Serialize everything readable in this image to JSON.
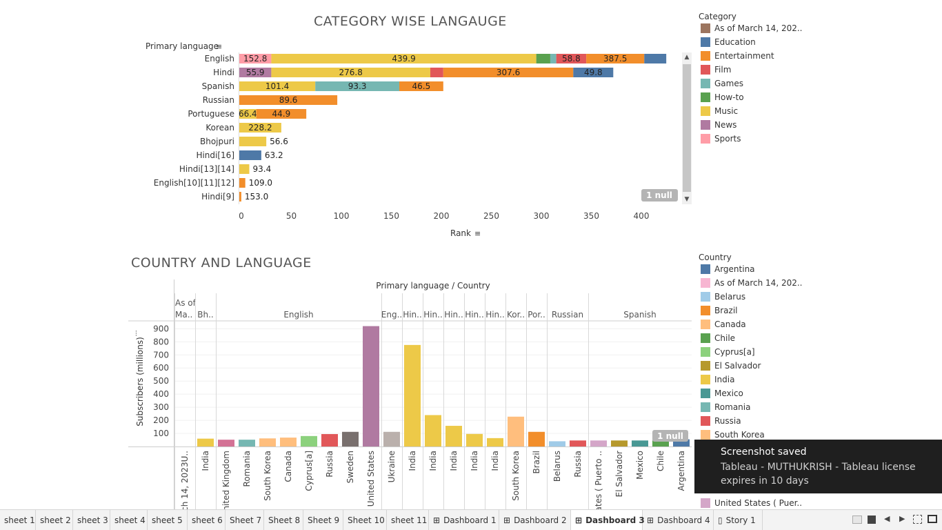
{
  "colors": {
    "As of March 14, 202..": "#9c755f",
    "Education": "#4e79a7",
    "Entertainment": "#f28e2b",
    "Film": "#e15759",
    "Games": "#76b7b2",
    "How-to": "#59a14f",
    "Music": "#edc948",
    "News": "#b07aa1",
    "Sports": "#ff9da7"
  },
  "top_chart": {
    "title": "CATEGORY WISE LANGAUGE",
    "row_header": "Primary language",
    "x_axis_label": "Rank",
    "null_badge": "1 null"
  },
  "bottom_chart": {
    "title": "COUNTRY AND LANGUAGE",
    "header_label": "Primary language / Country",
    "y_axis_label": "Subscribers (millions)",
    "null_badge": "1 null"
  },
  "chart_data": [
    {
      "type": "bar",
      "orientation": "horizontal",
      "stacked": true,
      "title": "CATEGORY WISE LANGAUGE",
      "xlabel": "Rank",
      "ylabel": "Primary language",
      "xlim": [
        0,
        450
      ],
      "xticks": [
        0,
        50,
        100,
        150,
        200,
        250,
        300,
        350,
        400
      ],
      "categories": [
        "English",
        "Hindi",
        "Spanish",
        "Russian",
        "Portuguese",
        "Korean",
        "Bhojpuri",
        "Hindi[16]",
        "Hindi[13][14]",
        "English[10][11][12]",
        "Hindi[9]"
      ],
      "rows": [
        {
          "label": "English",
          "segments": [
            {
              "cat": "Sports",
              "value": 32,
              "label": "152.8"
            },
            {
              "cat": "Music",
              "value": 265,
              "label": "439.9"
            },
            {
              "cat": "How-to",
              "value": 14,
              "label": ""
            },
            {
              "cat": "Games",
              "value": 6,
              "label": ""
            },
            {
              "cat": "Film",
              "value": 30,
              "label": "58.8"
            },
            {
              "cat": "Entertainment",
              "value": 58,
              "label": "387.5"
            },
            {
              "cat": "Education",
              "value": 22,
              "label": ""
            }
          ]
        },
        {
          "label": "Hindi",
          "segments": [
            {
              "cat": "News",
              "value": 32,
              "label": "55.9"
            },
            {
              "cat": "Music",
              "value": 159,
              "label": "276.8"
            },
            {
              "cat": "Film",
              "value": 13,
              "label": ""
            },
            {
              "cat": "Entertainment",
              "value": 130,
              "label": "307.6"
            },
            {
              "cat": "Education",
              "value": 40,
              "label": "49.8"
            }
          ]
        },
        {
          "label": "Spanish",
          "segments": [
            {
              "cat": "Music",
              "value": 76,
              "label": "101.4"
            },
            {
              "cat": "Games",
              "value": 84,
              "label": "93.3"
            },
            {
              "cat": "Entertainment",
              "value": 44,
              "label": "46.5"
            }
          ]
        },
        {
          "label": "Russian",
          "segments": [
            {
              "cat": "Entertainment",
              "value": 98,
              "label": "89.6"
            }
          ]
        },
        {
          "label": "Portuguese",
          "segments": [
            {
              "cat": "Music",
              "value": 17,
              "label": "66.4"
            },
            {
              "cat": "Entertainment",
              "value": 50,
              "label": "44.9"
            }
          ]
        },
        {
          "label": "Korean",
          "segments": [
            {
              "cat": "Music",
              "value": 42,
              "label": "228.2"
            }
          ]
        },
        {
          "label": "Bhojpuri",
          "segments": [
            {
              "cat": "Music",
              "value": 27,
              "label": "56.6"
            }
          ]
        },
        {
          "label": "Hindi[16]",
          "segments": [
            {
              "cat": "Education",
              "value": 22,
              "label": "63.2"
            }
          ]
        },
        {
          "label": "Hindi[13][14]",
          "segments": [
            {
              "cat": "Music",
              "value": 10,
              "label": "93.4"
            }
          ]
        },
        {
          "label": "English[10][11][12]",
          "segments": [
            {
              "cat": "Entertainment",
              "value": 6,
              "label": "109.0"
            }
          ]
        },
        {
          "label": "Hindi[9]",
          "segments": [
            {
              "cat": "Entertainment",
              "value": 2,
              "label": "153.0"
            }
          ]
        }
      ],
      "legend": {
        "title": "Category",
        "placement": "right",
        "items": [
          "As of March 14, 202..",
          "Education",
          "Entertainment",
          "Film",
          "Games",
          "How-to",
          "Music",
          "News",
          "Sports"
        ]
      }
    },
    {
      "type": "bar",
      "title": "COUNTRY AND LANGUAGE",
      "xlabel": "Primary language / Country",
      "ylabel": "Subscribers (millions)",
      "ylim": [
        0,
        1000
      ],
      "yticks": [
        100,
        200,
        300,
        400,
        500,
        600,
        700,
        800,
        900
      ],
      "groups": [
        {
          "label": "As of Ma..",
          "bars": [
            {
              "country": "rch 14, 2023U..",
              "value": 0,
              "color": "#f7b6d2"
            }
          ]
        },
        {
          "label": "Bh..",
          "bars": [
            {
              "country": "India",
              "value": 60,
              "color": "#edc948"
            }
          ]
        },
        {
          "label": "English",
          "bars": [
            {
              "country": "United Kingdom",
              "value": 52,
              "color": "#d37295"
            },
            {
              "country": "Romania",
              "value": 52,
              "color": "#76b7b2"
            },
            {
              "country": "South Korea",
              "value": 62,
              "color": "#ffbe7d"
            },
            {
              "country": "Canada",
              "value": 68,
              "color": "#ffbe7d"
            },
            {
              "country": "Cyprus[a]",
              "value": 80,
              "color": "#8cd17d"
            },
            {
              "country": "Russia",
              "value": 95,
              "color": "#e15759"
            },
            {
              "country": "Sweden",
              "value": 112,
              "color": "#79706e"
            },
            {
              "country": "United States",
              "value": 920,
              "color": "#b07aa1"
            }
          ]
        },
        {
          "label": "Eng..",
          "bars": [
            {
              "country": "Ukraine",
              "value": 112,
              "color": "#bab0ac"
            }
          ]
        },
        {
          "label": "Hin..",
          "bars": [
            {
              "country": "India",
              "value": 776,
              "color": "#edc948"
            }
          ]
        },
        {
          "label": "Hin..",
          "bars": [
            {
              "country": "India",
              "value": 240,
              "color": "#edc948"
            }
          ]
        },
        {
          "label": "Hin..",
          "bars": [
            {
              "country": "India",
              "value": 158,
              "color": "#edc948"
            }
          ]
        },
        {
          "label": "Hin..",
          "bars": [
            {
              "country": "India",
              "value": 96,
              "color": "#edc948"
            }
          ]
        },
        {
          "label": "Hin..",
          "bars": [
            {
              "country": "India",
              "value": 64,
              "color": "#edc948"
            }
          ]
        },
        {
          "label": "Kor..",
          "bars": [
            {
              "country": "South Korea",
              "value": 228,
              "color": "#ffbe7d"
            }
          ]
        },
        {
          "label": "Por..",
          "bars": [
            {
              "country": "Brazil",
              "value": 112,
              "color": "#f28e2b"
            }
          ]
        },
        {
          "label": "Russian",
          "bars": [
            {
              "country": "Belarus",
              "value": 40,
              "color": "#a0cbe8"
            },
            {
              "country": "Russia",
              "value": 46,
              "color": "#e15759"
            }
          ]
        },
        {
          "label": "Spanish",
          "bars": [
            {
              "country": "tates ( Puerto ..",
              "value": 46,
              "color": "#d4a6c8"
            },
            {
              "country": "El Salvador",
              "value": 46,
              "color": "#b6992d"
            },
            {
              "country": "Mexico",
              "value": 46,
              "color": "#499894"
            },
            {
              "country": "Chile",
              "value": 46,
              "color": "#59a14f"
            },
            {
              "country": "Argentina",
              "value": 55,
              "color": "#4e79a7"
            }
          ]
        }
      ],
      "legend": {
        "title": "Country",
        "placement": "right",
        "items": [
          {
            "name": "Argentina",
            "color": "#4e79a7"
          },
          {
            "name": "As of March 14, 202..",
            "color": "#f7b6d2"
          },
          {
            "name": "Belarus",
            "color": "#a0cbe8"
          },
          {
            "name": "Brazil",
            "color": "#f28e2b"
          },
          {
            "name": "Canada",
            "color": "#ffbe7d"
          },
          {
            "name": "Chile",
            "color": "#59a14f"
          },
          {
            "name": "Cyprus[a]",
            "color": "#8cd17d"
          },
          {
            "name": "El Salvador",
            "color": "#b6992d"
          },
          {
            "name": "India",
            "color": "#edc948"
          },
          {
            "name": "Mexico",
            "color": "#499894"
          },
          {
            "name": "Romania",
            "color": "#76b7b2"
          },
          {
            "name": "Russia",
            "color": "#e15759"
          },
          {
            "name": "South Korea",
            "color": "#ffbe7d"
          },
          {
            "name": "United States ( Puer..",
            "color": "#d4a6c8"
          }
        ]
      }
    }
  ],
  "toast": {
    "title": "Screenshot saved",
    "message": "Tableau - MUTHUKRISH - Tableau license expires in 10 days"
  },
  "tabs": [
    "sheet 1",
    "sheet 2",
    "sheet 3",
    "sheet 4",
    "sheet 5",
    "sheet 6",
    "Sheet 7",
    "Sheet 8",
    "Sheet 9",
    "Sheet 10",
    "sheet 11",
    "Dashboard 1",
    "Dashboard 2",
    "Dashboard 3",
    "Dashboard 4",
    "Story 1"
  ],
  "active_tab": "Dashboard 3"
}
